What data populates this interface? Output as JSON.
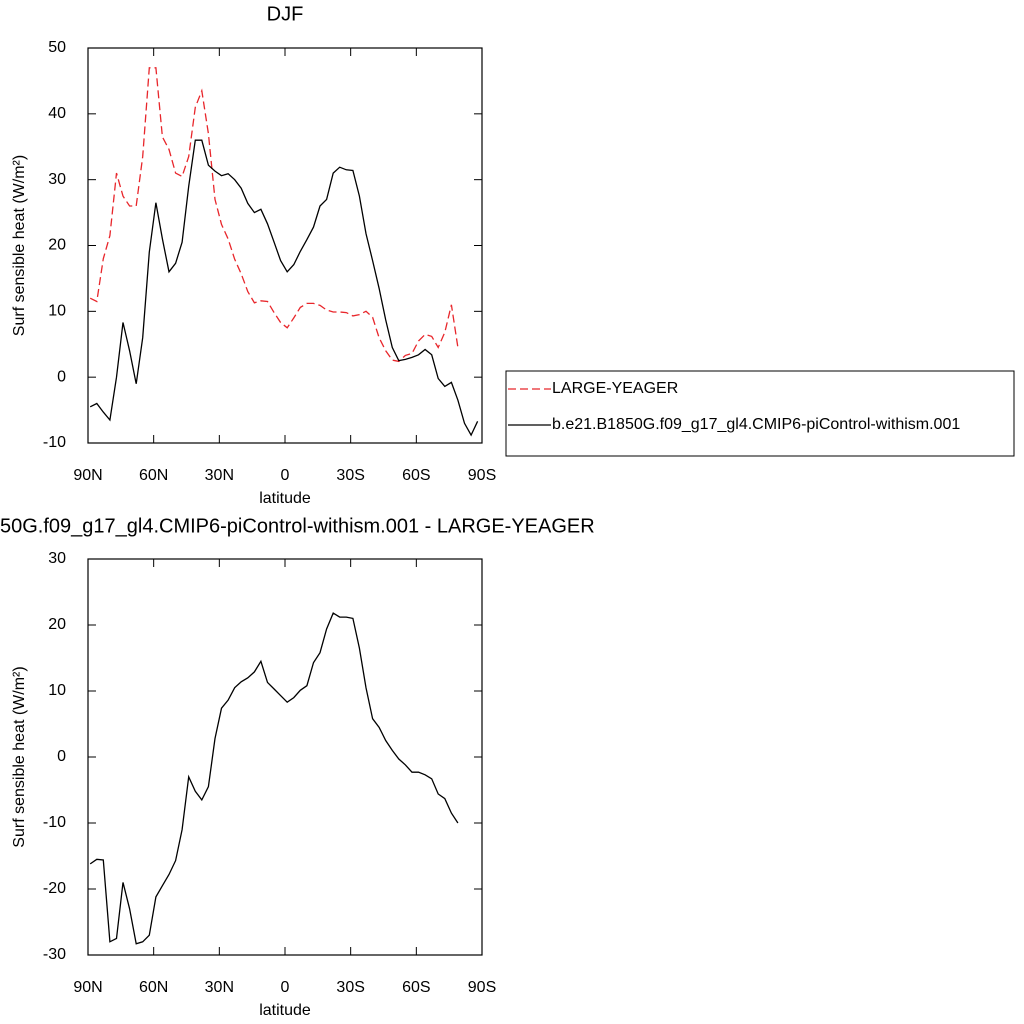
{
  "chart_data": [
    {
      "type": "line",
      "title": "DJF",
      "xlabel": "latitude",
      "ylabel": "Surf sensible heat (W/m²)",
      "x": [
        89,
        86,
        83,
        80,
        77,
        74,
        71,
        68,
        65,
        62,
        59,
        56,
        53,
        50,
        47,
        44,
        41,
        38,
        35,
        32,
        29,
        26,
        23,
        20,
        17,
        14,
        11,
        8,
        5,
        2,
        -1,
        -4,
        -7,
        -10,
        -13,
        -16,
        -19,
        -22,
        -25,
        -28,
        -31,
        -34,
        -37,
        -40,
        -43,
        -46,
        -49,
        -52,
        -55,
        -58,
        -61,
        -64,
        -67,
        -70,
        -73,
        -76,
        -79,
        -82,
        -85,
        -88
      ],
      "xlim": [
        90,
        -90
      ],
      "xticks": [
        {
          "value": 90,
          "label": "90N"
        },
        {
          "value": 60,
          "label": "60N"
        },
        {
          "value": 30,
          "label": "30N"
        },
        0,
        {
          "value": -30,
          "label": "30S"
        },
        {
          "value": -60,
          "label": "60S"
        },
        {
          "value": -90,
          "label": "90S"
        }
      ],
      "ylim": [
        -10,
        50
      ],
      "yticks": [
        -10,
        0,
        10,
        20,
        30,
        40,
        50
      ],
      "legend": "right",
      "series": [
        {
          "name": "LARGE-YEAGER",
          "color": "#e8262b",
          "style": "dashed",
          "values": [
            12,
            11.5,
            18,
            21.5,
            31,
            27.5,
            26,
            26,
            33.5,
            47,
            47,
            36.5,
            34.6,
            31,
            30.5,
            33.5,
            41,
            43.5,
            37,
            27,
            23.2,
            21,
            17.9,
            15.7,
            13,
            11.3,
            11.6,
            11.5,
            9.8,
            8.3,
            7.5,
            9,
            10.6,
            11.2,
            11.2,
            10.9,
            10.2,
            9.9,
            9.9,
            9.8,
            9.3,
            9.5,
            10,
            9.1,
            6,
            4,
            2.6,
            2.4,
            3.3,
            3.6,
            5.5,
            6.5,
            6.2,
            4.5,
            6.8,
            11,
            4.5,
            null,
            null,
            null
          ]
        },
        {
          "name": "b.e21.B1850G.f09_g17_gl4.CMIP6-piControl-withism.001",
          "color": "#000000",
          "style": "solid",
          "values": [
            -4.5,
            -4,
            -5.3,
            -6.5,
            0,
            8.3,
            4,
            -1,
            6,
            19,
            26.5,
            21,
            16,
            17.3,
            20.5,
            29,
            36,
            36,
            32.2,
            31.3,
            30.6,
            30.9,
            30,
            28.7,
            26.4,
            25,
            25.5,
            23.3,
            20.5,
            17.7,
            16,
            17.1,
            19.1,
            20.9,
            22.8,
            26,
            27,
            31,
            31.9,
            31.5,
            31.4,
            27.5,
            21.8,
            17.7,
            13.5,
            8.7,
            4.5,
            2.5,
            2.7,
            3,
            3.4,
            4.2,
            3.4,
            -0.2,
            -1.4,
            -0.8,
            -3.5,
            -7,
            -8.8,
            -6.7
          ]
        }
      ]
    },
    {
      "type": "line",
      "title": "50G.f09_g17_gl4.CMIP6-piControl-withism.001 - LARGE-YEAGER",
      "xlabel": "latitude",
      "ylabel": "Surf sensible heat (W/m²)",
      "x": [
        89,
        86,
        83,
        80,
        77,
        74,
        71,
        68,
        65,
        62,
        59,
        56,
        53,
        50,
        47,
        44,
        41,
        38,
        35,
        32,
        29,
        26,
        23,
        20,
        17,
        14,
        11,
        8,
        5,
        2,
        -1,
        -4,
        -7,
        -10,
        -13,
        -16,
        -19,
        -22,
        -25,
        -28,
        -31,
        -34,
        -37,
        -40,
        -43,
        -46,
        -49,
        -52,
        -55,
        -58,
        -61,
        -64,
        -67,
        -70,
        -73,
        -76,
        -79,
        -82,
        -85,
        -88
      ],
      "xlim": [
        90,
        -90
      ],
      "xticks": [
        {
          "value": 90,
          "label": "90N"
        },
        {
          "value": 60,
          "label": "60N"
        },
        {
          "value": 30,
          "label": "30N"
        },
        0,
        {
          "value": -30,
          "label": "30S"
        },
        {
          "value": -60,
          "label": "60S"
        },
        {
          "value": -90,
          "label": "90S"
        }
      ],
      "ylim": [
        -30,
        30
      ],
      "yticks": [
        -30,
        -20,
        -10,
        0,
        10,
        20,
        30
      ],
      "series": [
        {
          "color": "#000000",
          "style": "solid",
          "values": [
            -16.2,
            -15.5,
            -15.6,
            -28,
            -27.5,
            -19,
            -23,
            -28.3,
            -28,
            -27,
            -21.2,
            -19.5,
            -17.8,
            -15.7,
            -11,
            -3,
            -5.2,
            -6.5,
            -4.5,
            2.8,
            7.4,
            8.6,
            10.5,
            11.4,
            12,
            12.9,
            14.5,
            11.3,
            10.3,
            9.3,
            8.3,
            9,
            10.1,
            10.8,
            14.3,
            15.8,
            19.4,
            21.8,
            21.2,
            21.2,
            21,
            16.5,
            10.5,
            5.8,
            4.5,
            2.5,
            1,
            -0.3,
            -1.2,
            -2.3,
            -2.3,
            -2.7,
            -3.3,
            -5.6,
            -6.3,
            -8.5,
            -10,
            null,
            null,
            null
          ]
        }
      ]
    }
  ]
}
